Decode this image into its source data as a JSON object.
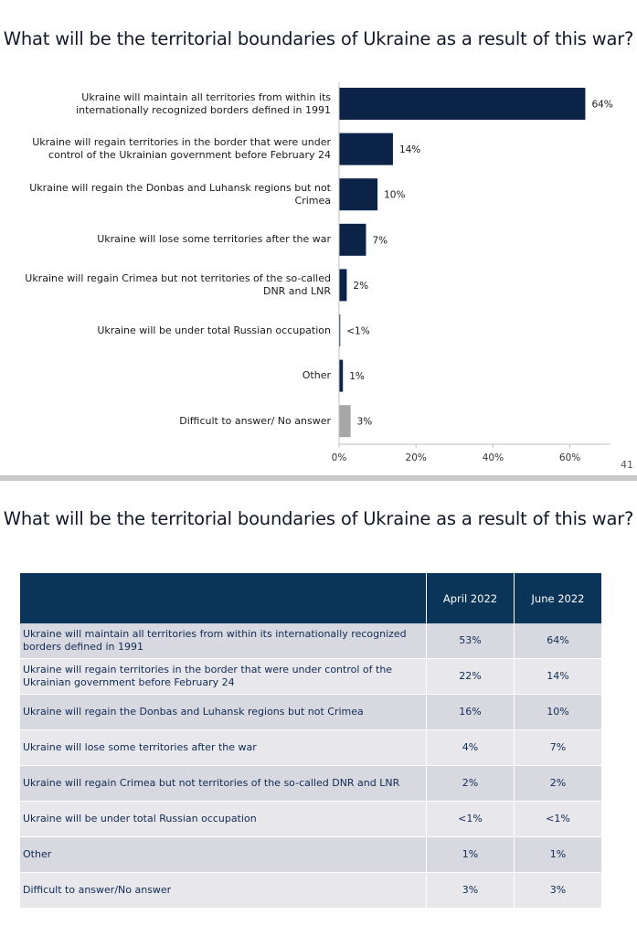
{
  "slide1": {
    "title": "What will be the territorial boundaries of Ukraine as a result of this war?",
    "page_number": "41"
  },
  "chart_data": {
    "type": "bar",
    "orientation": "horizontal",
    "title": "What will be the territorial boundaries of Ukraine as a result of this war?",
    "categories": [
      "Ukraine will maintain all territories from within its internationally recognized borders defined in 1991",
      "Ukraine will regain territories in the border that were under control of the Ukrainian government before February 24",
      "Ukraine will regain the Donbas and Luhansk regions but not Crimea",
      "Ukraine will lose some territories after the war",
      "Ukraine will regain Crimea but not territories of the so-called DNR and LNR",
      "Ukraine will be under total Russian occupation",
      "Other",
      "Difficult to answer/ No answer"
    ],
    "values": [
      64,
      14,
      10,
      7,
      2,
      0.3,
      1,
      3
    ],
    "data_labels": [
      "64%",
      "14%",
      "10%",
      "7%",
      "2%",
      "<1%",
      "1%",
      "3%"
    ],
    "bar_colors": [
      "#0b2346",
      "#0b2346",
      "#0b2346",
      "#0b2346",
      "#0b2346",
      "#0b2346",
      "#0b2346",
      "#a6a6a6"
    ],
    "x_ticks": [
      0,
      20,
      40,
      60
    ],
    "x_tick_labels": [
      "0%",
      "20%",
      "40%",
      "60%"
    ],
    "xlim": [
      0,
      70
    ],
    "xlabel": "",
    "ylabel": ""
  },
  "slide2": {
    "title": "What will be the territorial boundaries of Ukraine as a result of this war?",
    "table": {
      "header": [
        "",
        "April 2022",
        "June 2022"
      ],
      "rows": [
        [
          "Ukraine will maintain all territories from within its internationally  recognized borders defined in 1991",
          "53%",
          "64%"
        ],
        [
          "Ukraine will regain territories in the border that were under control of the Ukrainian government before February 24",
          "22%",
          "14%"
        ],
        [
          "Ukraine will regain the Donbas and Luhansk regions but not Crimea",
          "16%",
          "10%"
        ],
        [
          "Ukraine will lose some territories after the war",
          "4%",
          "7%"
        ],
        [
          "Ukraine will regain Crimea but not territories of the so-called DNR and LNR",
          "2%",
          "2%"
        ],
        [
          "Ukraine will be under total Russian occupation",
          "<1%",
          "<1%"
        ],
        [
          "Other",
          "1%",
          "1%"
        ],
        [
          "Difficult to answer/No answer",
          "3%",
          "3%"
        ]
      ]
    }
  }
}
